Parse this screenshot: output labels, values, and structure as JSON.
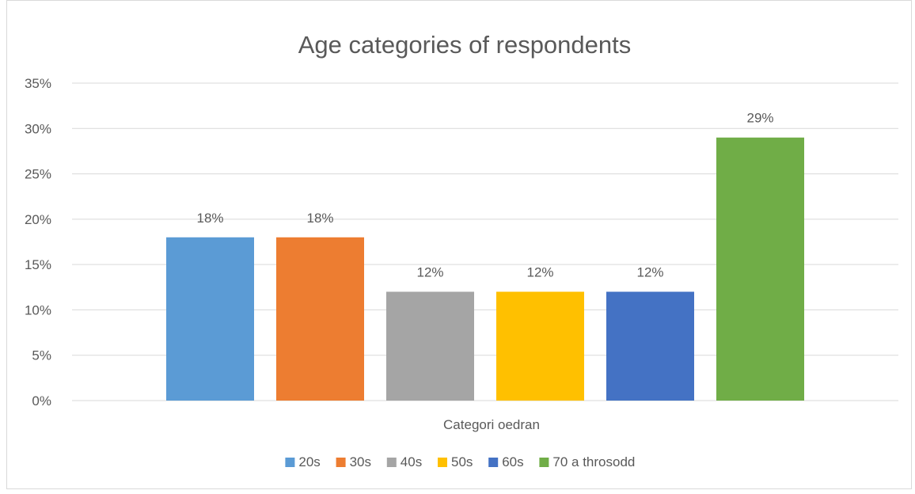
{
  "chart_data": {
    "type": "bar",
    "title": "Age categories of respondents",
    "xlabel": "Categori oedran",
    "ylabel": "",
    "categories": [
      "Categori oedran"
    ],
    "series": [
      {
        "name": "20s",
        "values": [
          18
        ],
        "label": "18%",
        "color": "#5b9bd5"
      },
      {
        "name": "30s",
        "values": [
          18
        ],
        "label": "18%",
        "color": "#ed7d31"
      },
      {
        "name": "40s",
        "values": [
          12
        ],
        "label": "12%",
        "color": "#a5a5a5"
      },
      {
        "name": "50s",
        "values": [
          12
        ],
        "label": "12%",
        "color": "#ffc000"
      },
      {
        "name": "60s",
        "values": [
          12
        ],
        "label": "12%",
        "color": "#4472c4"
      },
      {
        "name": "70 a throsodd",
        "values": [
          29
        ],
        "label": "29%",
        "color": "#70ad47"
      }
    ],
    "ylim": [
      0,
      35
    ],
    "yticks": [
      0,
      5,
      10,
      15,
      20,
      25,
      30,
      35
    ],
    "ytick_labels": [
      "0%",
      "5%",
      "10%",
      "15%",
      "20%",
      "25%",
      "30%",
      "35%"
    ],
    "grid": true,
    "legend_position": "bottom",
    "gridline_color": "#d9d9d9",
    "text_color": "#595959"
  }
}
